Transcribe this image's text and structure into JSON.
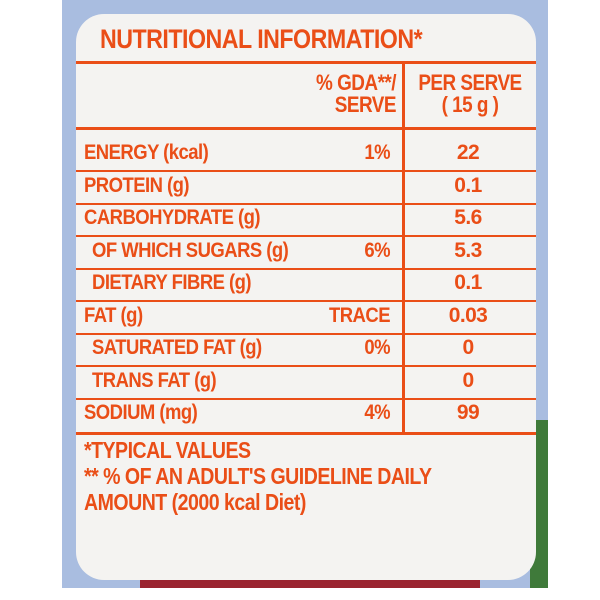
{
  "title": "NUTRITIONAL INFORMATION*",
  "header": {
    "gda_line1": "% GDA**/",
    "gda_line2": "SERVE",
    "serve_line1": "PER SERVE",
    "serve_line2": "( 15 g )"
  },
  "rows": [
    {
      "label": "ENERGY (kcal)",
      "gda": "1%",
      "value": "22"
    },
    {
      "label": "PROTEIN (g)",
      "gda": "",
      "value": "0.1"
    },
    {
      "label": "CARBOHYDRATE (g)",
      "gda": "",
      "value": "5.6"
    },
    {
      "label": "OF WHICH SUGARS (g)",
      "gda": "6%",
      "value": "5.3"
    },
    {
      "label": "DIETARY FIBRE (g)",
      "gda": "",
      "value": "0.1"
    },
    {
      "label": "FAT (g)",
      "gda": "TRACE",
      "value": "0.03"
    },
    {
      "label": "SATURATED FAT (g)",
      "gda": "0%",
      "value": "0"
    },
    {
      "label": "TRANS FAT (g)",
      "gda": "",
      "value": "0"
    },
    {
      "label": "SODIUM (mg)",
      "gda": "4%",
      "value": "99"
    }
  ],
  "footnotes": [
    "*TYPICAL VALUES",
    "** % OF AN ADULT'S GUIDELINE DAILY",
    "AMOUNT (2000 kcal Diet)"
  ],
  "colors": {
    "text": "#ea4e17",
    "label_bg": "#f4f3f1",
    "pack_bg": "#a9bde0"
  }
}
